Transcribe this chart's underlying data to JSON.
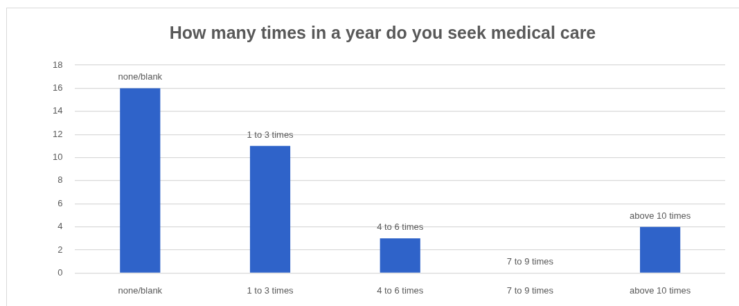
{
  "chart_data": {
    "type": "bar",
    "title": "How many times in a year do you seek medical care",
    "categories": [
      "none/blank",
      "1 to 3 times",
      "4 to 6 times",
      "7 to 9 times",
      "above 10 times"
    ],
    "values": [
      16,
      11,
      3,
      0,
      4
    ],
    "color": "#2f63c9",
    "annotations": [
      {
        "text": "none/blank",
        "x": "none/blank",
        "y": 16
      },
      {
        "text": "1 to 3 times",
        "x": "1 to 3 times",
        "y": 11
      },
      {
        "text": "4 to 6 times",
        "x": "4 to 6 times",
        "y": 3
      },
      {
        "text": "7 to 9 times",
        "x": "7 to 9 times",
        "y": 0
      },
      {
        "text": "above 10 times",
        "x": "above 10 times",
        "y": 4
      }
    ],
    "ylim": [
      0,
      18
    ],
    "yticks": [
      0,
      2,
      4,
      6,
      8,
      10,
      12,
      14,
      16,
      18
    ],
    "grid": "y"
  }
}
